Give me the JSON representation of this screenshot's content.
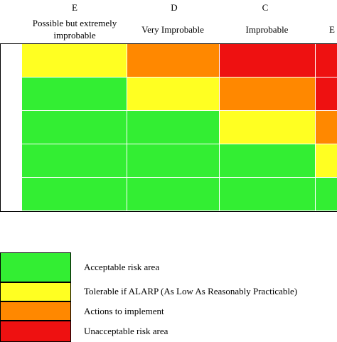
{
  "columns": [
    {
      "letter": "E",
      "label_line1": "Possible but extremely",
      "label_line2": "improbable"
    },
    {
      "letter": "D",
      "label_line1": "Very Improbable",
      "label_line2": ""
    },
    {
      "letter": "C",
      "label_line1": "Improbable",
      "label_line2": ""
    },
    {
      "letter": "",
      "label_line1": "E",
      "label_line2": ""
    }
  ],
  "colors": {
    "green": "#33ee33",
    "yellow": "#ffff22",
    "orange": "#ff8800",
    "red": "#ee1111"
  },
  "matrix": [
    [
      "yellow",
      "orange",
      "red",
      "red"
    ],
    [
      "green",
      "yellow",
      "orange",
      "red"
    ],
    [
      "green",
      "green",
      "yellow",
      "orange"
    ],
    [
      "green",
      "green",
      "green",
      "yellow"
    ],
    [
      "green",
      "green",
      "green",
      "green"
    ]
  ],
  "legend": [
    {
      "color": "green",
      "label": "Acceptable risk area"
    },
    {
      "color": "yellow",
      "label": "Tolerable if ALARP (As Low As Reasonably Practicable)"
    },
    {
      "color": "orange",
      "label": "Actions to implement"
    },
    {
      "color": "red",
      "label": "Unacceptable risk area"
    }
  ]
}
